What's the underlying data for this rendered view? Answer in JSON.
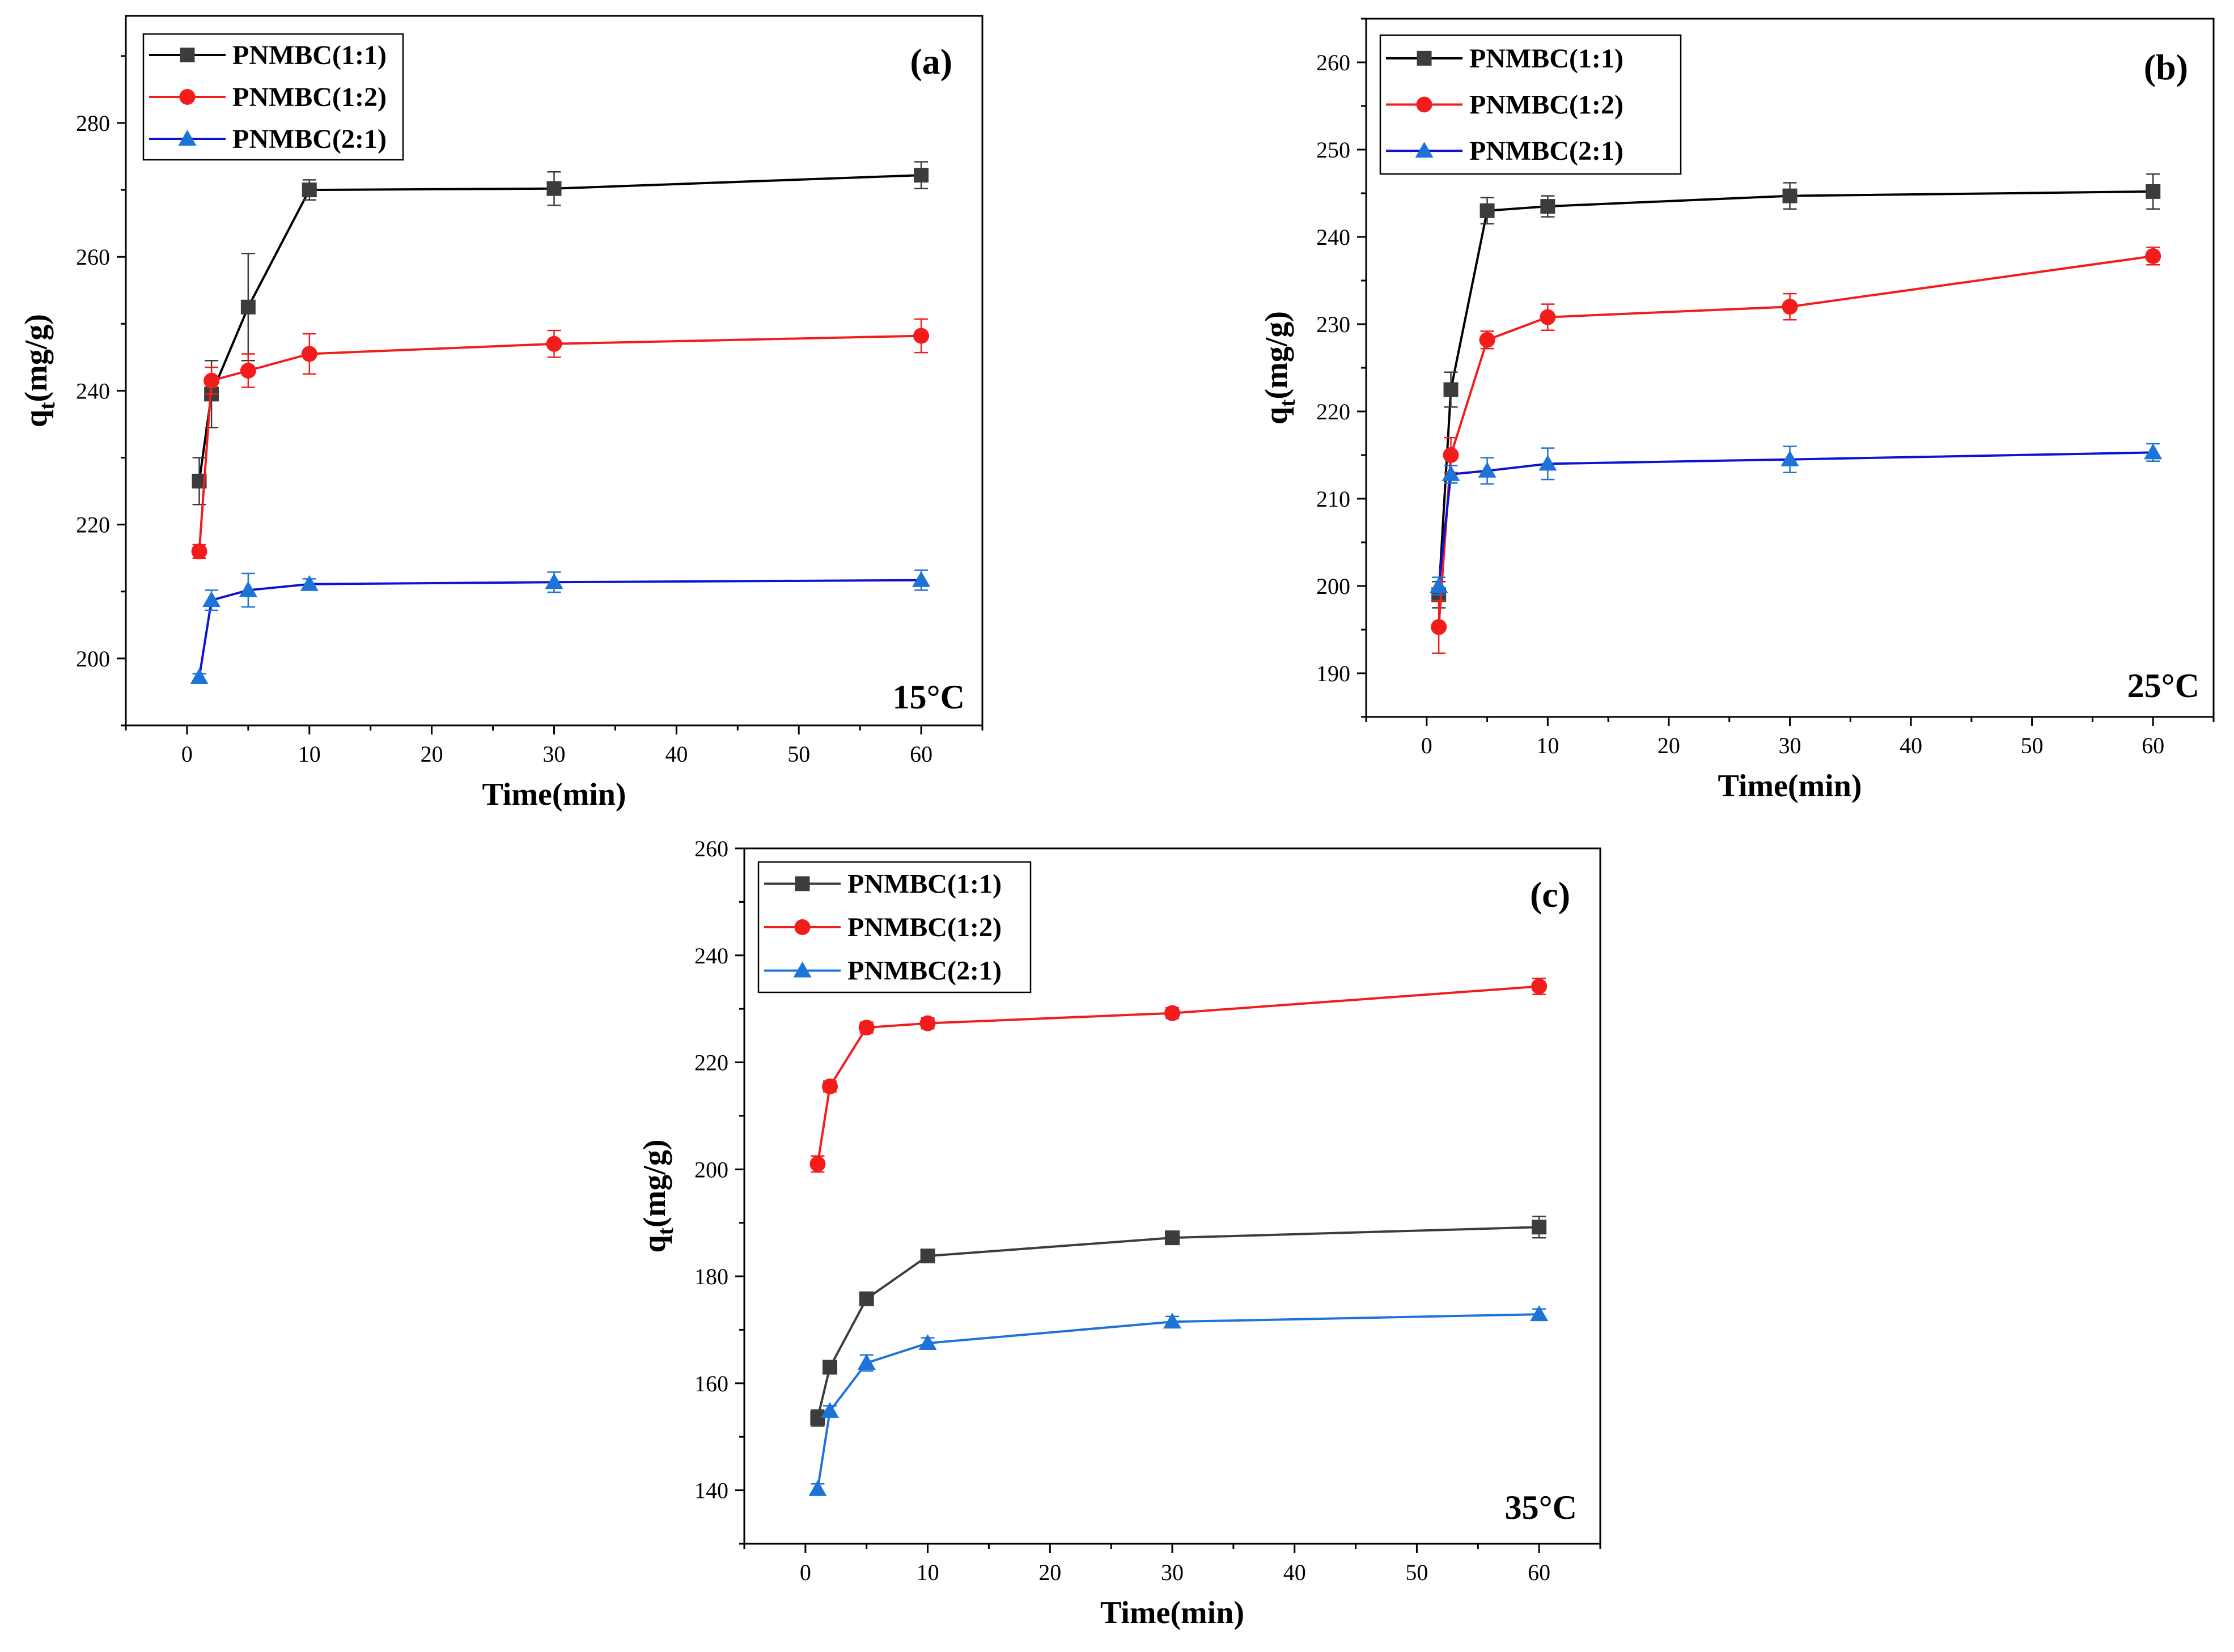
{
  "chart_data": [
    {
      "type": "line",
      "panel_label": "(a)",
      "annotation": "15°C",
      "xlabel": "Time(min)",
      "ylabel_main": "q",
      "ylabel_sub": "t",
      "ylabel_unit": "(mg/g)",
      "xlim": [
        -5,
        65
      ],
      "ylim": [
        190,
        296
      ],
      "xticks": [
        0,
        10,
        20,
        30,
        40,
        50,
        60
      ],
      "yticks": [
        200,
        220,
        240,
        260,
        280
      ],
      "legend_position": "top-left",
      "x": [
        1,
        2,
        5,
        10,
        30,
        60
      ],
      "series": [
        {
          "name": "PNMBC(1:1)",
          "color": "#3c3c3c",
          "line_color": "#000000",
          "marker": "square",
          "values": [
            226.5,
            239.5,
            252.5,
            270,
            270.2,
            272.2
          ],
          "errors": [
            3.5,
            5,
            8,
            1.5,
            2.5,
            2
          ]
        },
        {
          "name": "PNMBC(1:2)",
          "color": "#f21c1c",
          "line_color": "#f21c1c",
          "marker": "circle",
          "values": [
            216,
            241.5,
            243,
            245.5,
            247,
            248.2
          ],
          "errors": [
            1,
            2,
            2.5,
            3,
            2,
            2.5
          ]
        },
        {
          "name": "PNMBC(2:1)",
          "color": "#1e73d6",
          "line_color": "#0a14d2",
          "marker": "triangle",
          "values": [
            197.2,
            208.7,
            210.2,
            211.1,
            211.4,
            211.7
          ],
          "errors": [
            0.5,
            1.5,
            2.5,
            0.8,
            1.5,
            1.5
          ]
        }
      ]
    },
    {
      "type": "line",
      "panel_label": "(b)",
      "annotation": "25°C",
      "xlabel": "Time(min)",
      "ylabel_main": "q",
      "ylabel_sub": "t",
      "ylabel_unit": "(mg/g)",
      "xlim": [
        -5,
        65
      ],
      "ylim": [
        185,
        265
      ],
      "xticks": [
        0,
        10,
        20,
        30,
        40,
        50,
        60
      ],
      "yticks": [
        190,
        200,
        210,
        220,
        230,
        240,
        250,
        260
      ],
      "legend_position": "top-left",
      "x": [
        1,
        2,
        5,
        10,
        30,
        60
      ],
      "series": [
        {
          "name": "PNMBC(1:1)",
          "color": "#3c3c3c",
          "line_color": "#000000",
          "marker": "square",
          "values": [
            199,
            222.5,
            243,
            243.5,
            244.7,
            245.2
          ],
          "errors": [
            1.5,
            2,
            1.5,
            1.2,
            1.5,
            2
          ]
        },
        {
          "name": "PNMBC(1:2)",
          "color": "#f21c1c",
          "line_color": "#f21c1c",
          "marker": "circle",
          "values": [
            195.3,
            215,
            228.2,
            230.8,
            232,
            237.8
          ],
          "errors": [
            3,
            2,
            1,
            1.5,
            1.5,
            1
          ]
        },
        {
          "name": "PNMBC(2:1)",
          "color": "#1e73d6",
          "line_color": "#0a14d2",
          "marker": "triangle",
          "values": [
            200,
            212.8,
            213.2,
            214,
            214.5,
            215.3
          ],
          "errors": [
            1,
            1,
            1.5,
            1.8,
            1.5,
            1
          ]
        }
      ]
    },
    {
      "type": "line",
      "panel_label": "(c)",
      "annotation": "35°C",
      "xlabel": "Time(min)",
      "ylabel_main": "q",
      "ylabel_sub": "t",
      "ylabel_unit": "(mg/g)",
      "xlim": [
        -5,
        65
      ],
      "ylim": [
        130,
        260
      ],
      "xticks": [
        0,
        10,
        20,
        30,
        40,
        50,
        60
      ],
      "yticks": [
        140,
        160,
        180,
        200,
        220,
        240,
        260
      ],
      "legend_position": "top-left",
      "x": [
        1,
        2,
        5,
        10,
        30,
        60
      ],
      "series": [
        {
          "name": "PNMBC(1:1)",
          "color": "#3c3c3c",
          "line_color": "#3c3c3c",
          "marker": "square",
          "values": [
            153.5,
            163,
            175.8,
            183.8,
            187.2,
            189.2
          ],
          "errors": [
            1.5,
            1,
            1,
            1,
            1,
            2
          ]
        },
        {
          "name": "PNMBC(1:2)",
          "color": "#f21c1c",
          "line_color": "#f21c1c",
          "marker": "circle",
          "values": [
            201,
            215.5,
            226.5,
            227.3,
            229.2,
            234.2
          ],
          "errors": [
            1.5,
            1,
            1,
            1,
            1,
            1.5
          ]
        },
        {
          "name": "PNMBC(2:1)",
          "color": "#1e73d6",
          "line_color": "#1e73d6",
          "marker": "triangle",
          "values": [
            140.2,
            154.8,
            163.8,
            167.5,
            171.5,
            172.9
          ],
          "errors": [
            1,
            1,
            1.5,
            1,
            1,
            1
          ]
        }
      ]
    }
  ]
}
